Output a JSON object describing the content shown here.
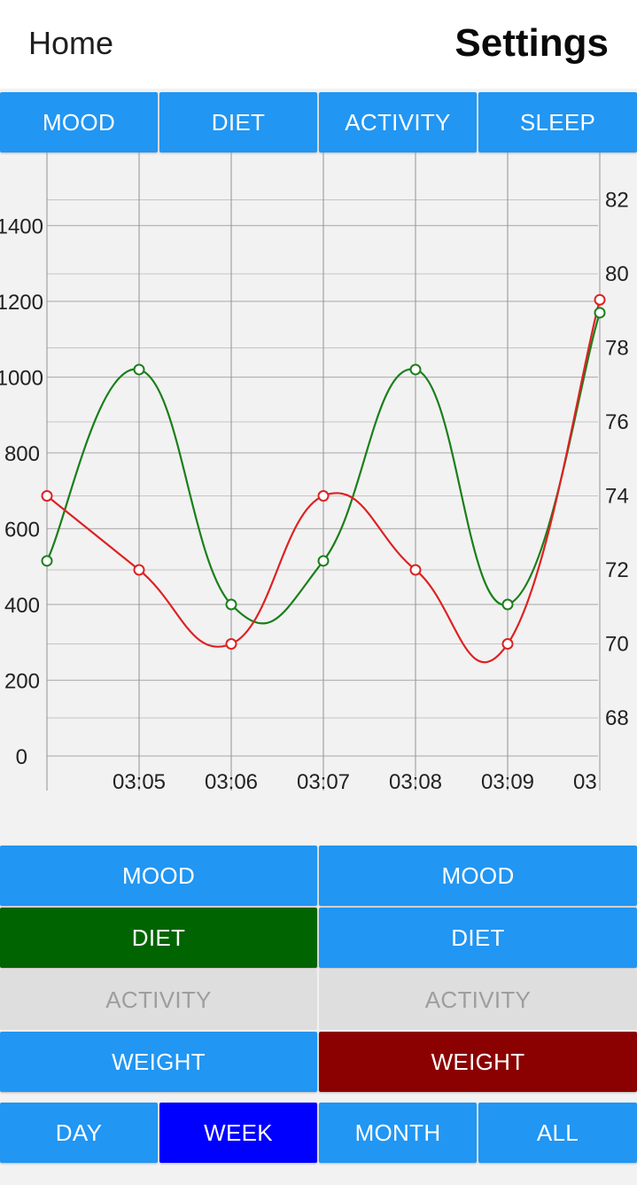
{
  "header": {
    "home_label": "Home",
    "settings_label": "Settings"
  },
  "top_tabs": [
    {
      "label": "MOOD"
    },
    {
      "label": "DIET"
    },
    {
      "label": "ACTIVITY"
    },
    {
      "label": "SLEEP"
    }
  ],
  "left_column": [
    {
      "label": "MOOD",
      "state": "normal"
    },
    {
      "label": "DIET",
      "state": "selected",
      "color": "#006400"
    },
    {
      "label": "ACTIVITY",
      "state": "disabled"
    },
    {
      "label": "WEIGHT",
      "state": "normal"
    }
  ],
  "right_column": [
    {
      "label": "MOOD",
      "state": "normal"
    },
    {
      "label": "DIET",
      "state": "normal"
    },
    {
      "label": "ACTIVITY",
      "state": "disabled"
    },
    {
      "label": "WEIGHT",
      "state": "selected",
      "color": "#8b0000"
    }
  ],
  "range_tabs": [
    {
      "label": "DAY",
      "selected": false
    },
    {
      "label": "WEEK",
      "selected": true,
      "color": "#0000ff"
    },
    {
      "label": "MONTH",
      "selected": false
    },
    {
      "label": "ALL",
      "selected": false
    }
  ],
  "colors": {
    "button": "#2196f3",
    "green_series": "#1a7f1a",
    "red_series": "#dd2222"
  },
  "chart_data": {
    "type": "line",
    "x_ticks": [
      "03:05",
      "03:06",
      "03:07",
      "03:08",
      "03:09",
      "03"
    ],
    "x_values": [
      0,
      1,
      2,
      3,
      4,
      5,
      6
    ],
    "xlim": [
      0,
      6
    ],
    "y_left": {
      "ticks": [
        "0",
        "200",
        "400",
        "600",
        "800",
        "1000",
        "1200",
        "1400"
      ],
      "range": [
        0,
        1450
      ]
    },
    "y_right": {
      "ticks": [
        "68",
        "70",
        "72",
        "74",
        "76",
        "78",
        "80",
        "82"
      ],
      "range": [
        66.3,
        83.5
      ]
    },
    "grid": true,
    "series": [
      {
        "axis": "left",
        "color": "#1a7f1a",
        "values": [
          515,
          1020,
          400,
          515,
          1020,
          400,
          1170
        ]
      },
      {
        "axis": "right",
        "color": "#dd2222",
        "values": [
          74,
          72,
          70,
          74,
          72,
          70,
          79.3
        ]
      }
    ]
  }
}
